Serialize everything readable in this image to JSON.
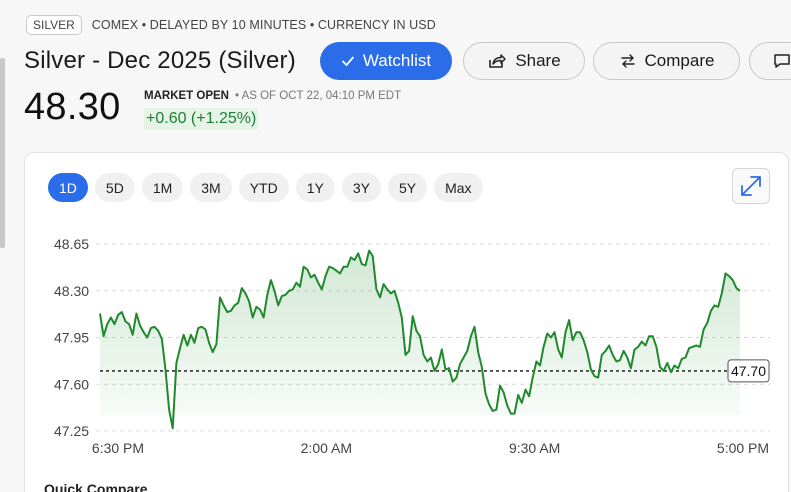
{
  "header": {
    "symbol": "SILVER",
    "meta": "COMEX • DELAYED BY 10 MINUTES • CURRENCY IN USD",
    "title": "Silver - Dec 2025 (Silver)"
  },
  "actions": {
    "watchlist": "Watchlist",
    "share": "Share",
    "compare": "Compare"
  },
  "quote": {
    "price": "48.30",
    "status": "MARKET OPEN",
    "as_of": "• AS OF OCT 22, 04:10 PM EDT",
    "change": "+0.60 (+1.25%)"
  },
  "ranges": [
    {
      "label": "1D",
      "active": true
    },
    {
      "label": "5D",
      "active": false
    },
    {
      "label": "1M",
      "active": false
    },
    {
      "label": "3M",
      "active": false
    },
    {
      "label": "YTD",
      "active": false
    },
    {
      "label": "1Y",
      "active": false
    },
    {
      "label": "3Y",
      "active": false
    },
    {
      "label": "5Y",
      "active": false
    },
    {
      "label": "Max",
      "active": false
    }
  ],
  "colors": {
    "accent": "#2b6de8",
    "positive": "#1d7f35",
    "line": "#1f8a2b"
  },
  "chart_data": {
    "type": "area",
    "yticks": [
      "48.65",
      "48.30",
      "47.95",
      "47.60",
      "47.25"
    ],
    "ylim": [
      47.25,
      48.65
    ],
    "xticks": [
      "6:30 PM",
      "2:00 AM",
      "9:30 AM",
      "5:00 PM"
    ],
    "previous_close": "47.70",
    "series": [
      {
        "values": [
          48.13,
          47.96,
          48.05,
          48.1,
          48.05,
          48.12,
          48.14,
          48.07,
          48.05,
          47.97,
          48.13,
          48.04,
          47.99,
          47.95,
          48.02,
          48.03,
          48.0,
          47.94,
          47.71,
          47.41,
          47.27,
          47.76,
          47.87,
          47.97,
          47.89,
          47.97,
          47.91,
          48.02,
          48.03,
          48.01,
          47.91,
          47.84,
          47.9,
          48.25,
          48.19,
          48.14,
          48.15,
          48.19,
          48.21,
          48.32,
          48.28,
          48.22,
          48.1,
          48.18,
          48.16,
          48.1,
          48.27,
          48.38,
          48.3,
          48.19,
          48.26,
          48.27,
          48.3,
          48.31,
          48.36,
          48.33,
          48.48,
          48.46,
          48.4,
          48.42,
          48.36,
          48.31,
          48.41,
          48.48,
          48.47,
          48.45,
          48.43,
          48.48,
          48.48,
          48.55,
          48.53,
          48.58,
          48.5,
          48.49,
          48.6,
          48.56,
          48.31,
          48.25,
          48.35,
          48.31,
          48.28,
          48.3,
          48.21,
          48.1,
          47.82,
          47.85,
          48.11,
          48.0,
          47.96,
          47.82,
          47.77,
          47.8,
          47.7,
          47.75,
          47.86,
          47.71,
          47.72,
          47.62,
          47.65,
          47.75,
          47.8,
          47.85,
          47.96,
          48.03,
          47.84,
          47.73,
          47.53,
          47.45,
          47.4,
          47.41,
          47.59,
          47.54,
          47.44,
          47.38,
          47.38,
          47.52,
          47.46,
          47.56,
          47.51,
          47.65,
          47.77,
          47.74,
          47.88,
          47.98,
          47.95,
          47.99,
          47.86,
          47.8,
          47.99,
          48.08,
          47.93,
          47.99,
          47.99,
          47.93,
          47.84,
          47.71,
          47.66,
          47.65,
          47.82,
          47.85,
          47.89,
          47.82,
          47.77,
          47.78,
          47.85,
          47.8,
          47.72,
          47.86,
          47.88,
          47.92,
          47.89,
          47.96,
          47.96,
          47.88,
          47.73,
          47.7,
          47.76,
          47.69,
          47.74,
          47.72,
          47.79,
          47.8,
          47.87,
          47.88,
          47.89,
          47.88,
          48.01,
          48.06,
          48.15,
          48.19,
          48.18,
          48.28,
          48.43,
          48.41,
          48.38,
          48.32,
          48.3
        ]
      }
    ]
  },
  "footer": {
    "quick_compare": "Quick Compare"
  }
}
